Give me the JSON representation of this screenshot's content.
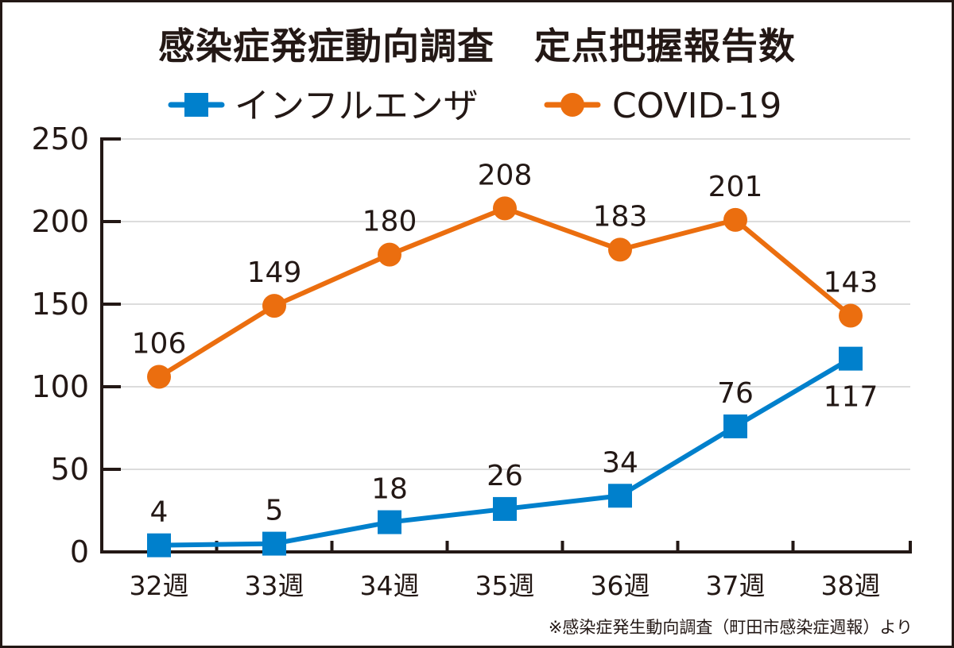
{
  "chart_data": {
    "type": "line",
    "title_part1": "感染症発症動向調査",
    "title_part2": "定点把握報告数",
    "categories": [
      "32週",
      "33週",
      "34週",
      "35週",
      "36週",
      "37週",
      "38週"
    ],
    "series": [
      {
        "name": "インフルエンザ",
        "marker": "square",
        "color": "#0080CC",
        "values": [
          4,
          5,
          18,
          26,
          34,
          76,
          117
        ]
      },
      {
        "name": "COVID-19",
        "marker": "circle",
        "color": "#EB6E0F",
        "values": [
          106,
          149,
          180,
          208,
          183,
          201,
          143
        ]
      }
    ],
    "yticks": [
      0,
      50,
      100,
      150,
      200,
      250
    ],
    "ylim": [
      0,
      250
    ],
    "grid": true,
    "legend_position": "top",
    "xlabel": "",
    "ylabel": "",
    "source_note": "※感染症発生動向調査（町田市感染症週報）より"
  }
}
